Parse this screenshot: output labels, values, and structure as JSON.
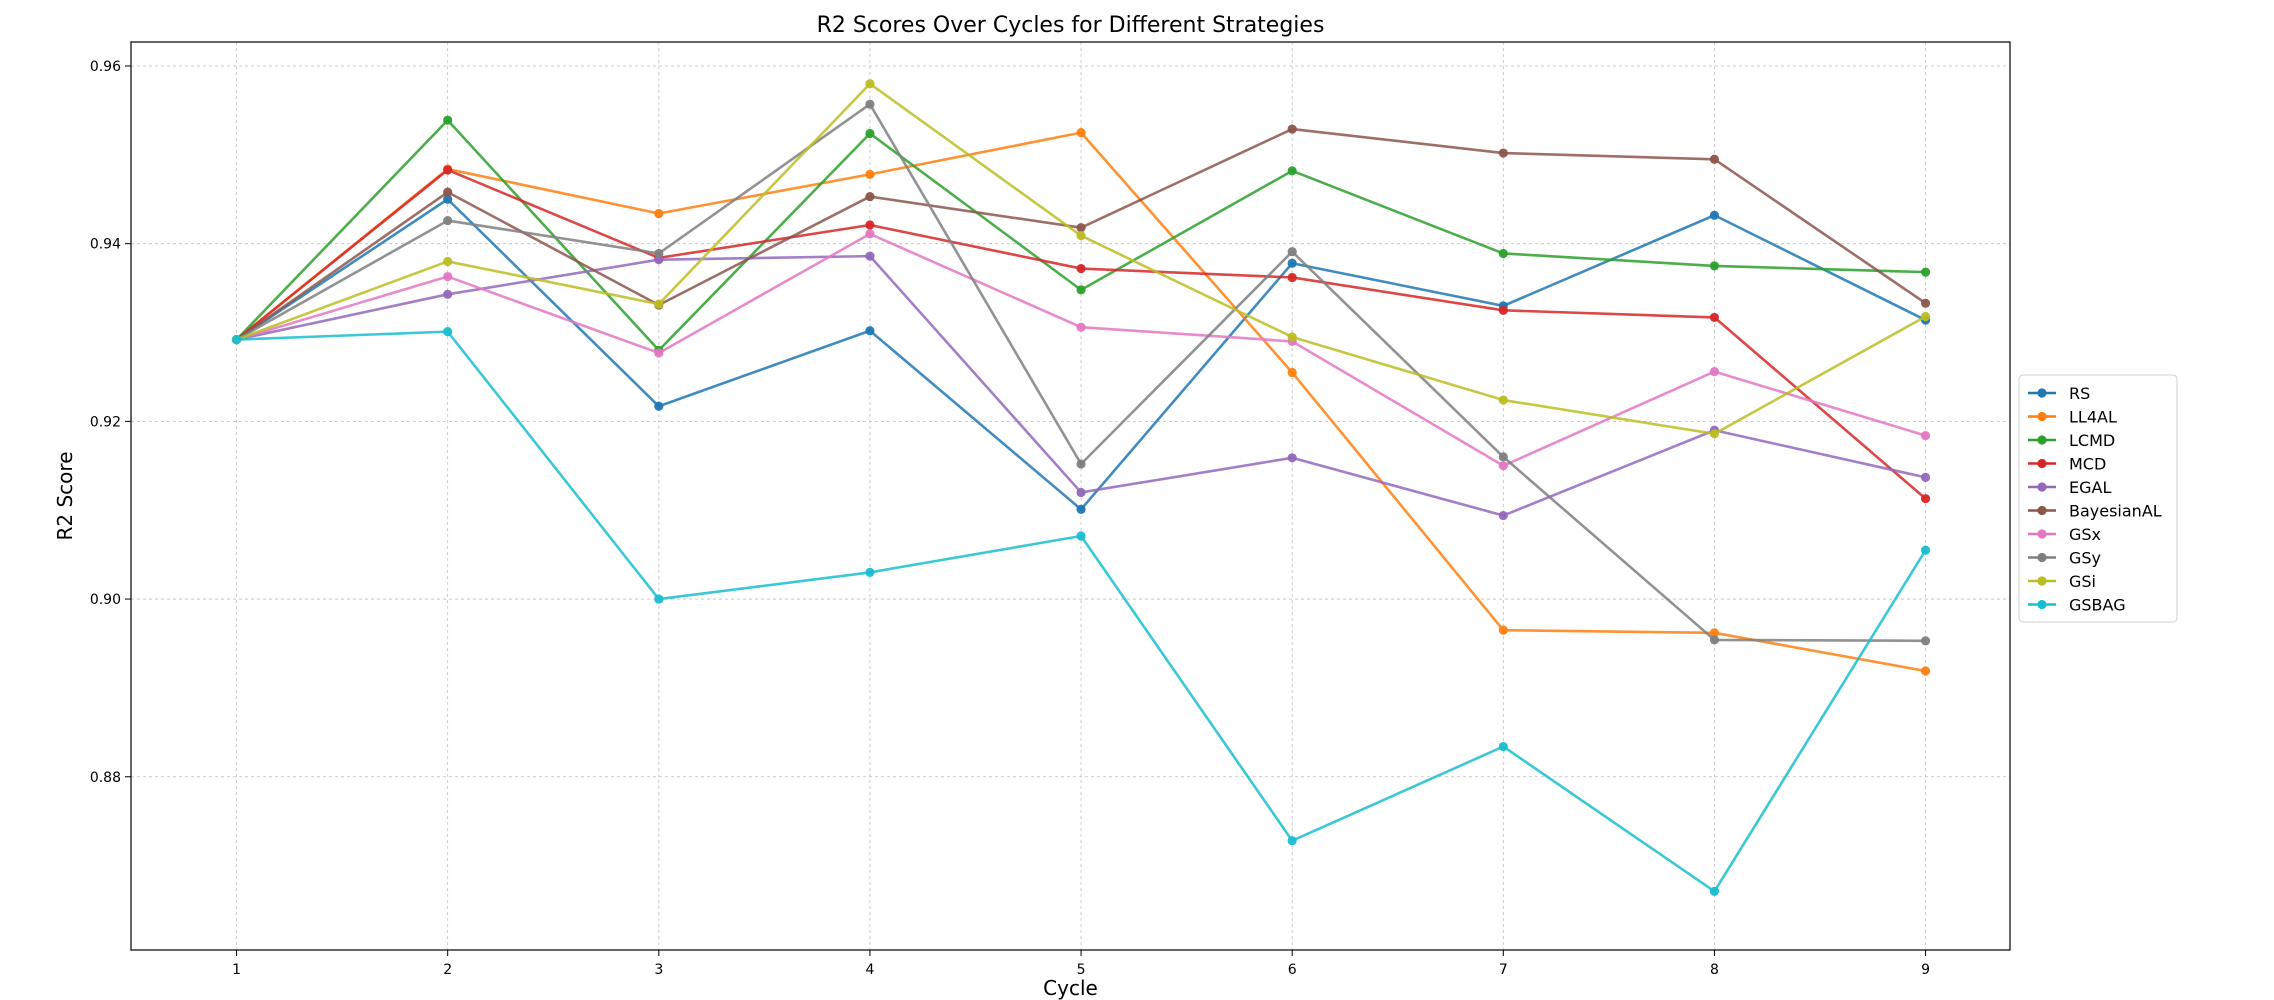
{
  "chart_data": {
    "type": "line",
    "title": "R2 Scores Over Cycles for Different Strategies",
    "xlabel": "Cycle",
    "ylabel": "R2 Score",
    "x": [
      1,
      2,
      3,
      4,
      5,
      6,
      7,
      8,
      9
    ],
    "xticks": [
      "1",
      "2",
      "3",
      "4",
      "5",
      "6",
      "7",
      "8",
      "9"
    ],
    "xlim": [
      0.5,
      9.4
    ],
    "ylim": [
      0.8605,
      0.9627
    ],
    "yticks": [
      "0.88",
      "0.90",
      "0.92",
      "0.94",
      "0.96"
    ],
    "ytick_values": [
      0.88,
      0.9,
      0.92,
      0.94,
      0.96
    ],
    "grid": true,
    "legend_position": "center-right",
    "series": [
      {
        "name": "RS",
        "color": "#1f77b4",
        "values": [
          0.9292,
          0.945,
          0.9217,
          0.9302,
          0.9101,
          0.9378,
          0.933,
          0.9432,
          0.9314
        ]
      },
      {
        "name": "LL4AL",
        "color": "#ff7f0e",
        "values": [
          0.9292,
          0.9484,
          0.9434,
          0.9478,
          0.9525,
          0.9255,
          0.8965,
          0.8962,
          0.8919
        ]
      },
      {
        "name": "LCMD",
        "color": "#2ca02c",
        "values": [
          0.9292,
          0.9539,
          0.928,
          0.9524,
          0.9348,
          0.9482,
          0.9389,
          0.9375,
          0.9368
        ]
      },
      {
        "name": "MCD",
        "color": "#d62728",
        "values": [
          0.9292,
          0.9483,
          0.9384,
          0.9421,
          0.9372,
          0.9362,
          0.9325,
          0.9317,
          0.9113
        ]
      },
      {
        "name": "EGAL",
        "color": "#9467bd",
        "values": [
          0.9292,
          0.9343,
          0.9382,
          0.9386,
          0.912,
          0.9159,
          0.9094,
          0.919,
          0.9137
        ]
      },
      {
        "name": "BayesianAL",
        "color": "#8c564b",
        "values": [
          0.9292,
          0.9458,
          0.9331,
          0.9453,
          0.9418,
          0.9529,
          0.9502,
          0.9495,
          0.9333
        ]
      },
      {
        "name": "GSx",
        "color": "#e377c2",
        "values": [
          0.9292,
          0.9363,
          0.9277,
          0.9411,
          0.9306,
          0.929,
          0.915,
          0.9256,
          0.9184
        ]
      },
      {
        "name": "GSy",
        "color": "#7f7f7f",
        "values": [
          0.9292,
          0.9426,
          0.9389,
          0.9557,
          0.9152,
          0.9391,
          0.916,
          0.8954,
          0.8953
        ]
      },
      {
        "name": "GSi",
        "color": "#bcbd22",
        "values": [
          0.9292,
          0.938,
          0.9332,
          0.958,
          0.9409,
          0.9295,
          0.9224,
          0.9186,
          0.9318
        ]
      },
      {
        "name": "GSBAG",
        "color": "#17becf",
        "values": [
          0.9292,
          0.9301,
          0.9,
          0.903,
          0.9071,
          0.8728,
          0.8834,
          0.8671,
          0.9055
        ]
      }
    ]
  }
}
